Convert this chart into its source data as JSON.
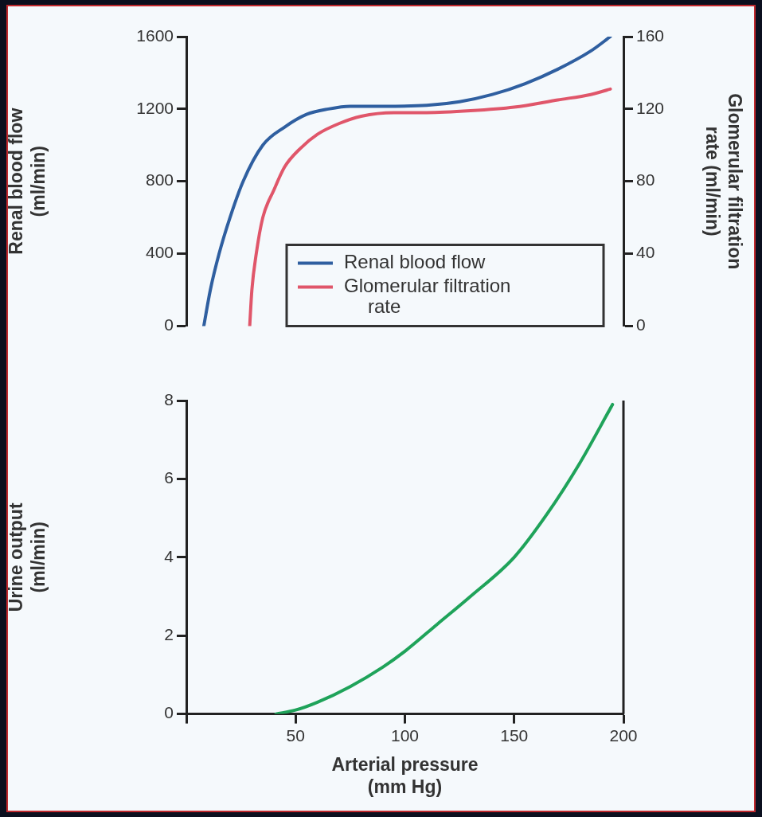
{
  "chart_data": [
    {
      "type": "line",
      "ylabel": "Renal blood flow (ml/min)",
      "y2label": "Glomerular filtration rate (ml/min)",
      "xlim": [
        0,
        200
      ],
      "ylim": [
        0,
        1600
      ],
      "yticks": [
        0,
        400,
        800,
        1200,
        1600
      ],
      "y2lim": [
        0,
        160
      ],
      "y2ticks": [
        0,
        40,
        80,
        120,
        160
      ],
      "tick_labels": "y",
      "grid": false,
      "legend": "bottom right",
      "marker": "none",
      "line_style": "solid",
      "series": [
        {
          "name": "Renal blood flow",
          "color": "#2f5fa0",
          "x": [
            8,
            11,
            15,
            20,
            26,
            35,
            45,
            55,
            65,
            75,
            90,
            110,
            125,
            140,
            155,
            170,
            185,
            194
          ],
          "values": [
            0,
            200,
            400,
            600,
            800,
            1000,
            1100,
            1170,
            1200,
            1215,
            1215,
            1220,
            1240,
            1280,
            1340,
            1420,
            1520,
            1600
          ]
        },
        {
          "name": "Glomerular filtration rate",
          "color": "#e0566a",
          "axis": "y2",
          "x": [
            29,
            30,
            32,
            35,
            40,
            45,
            52,
            60,
            70,
            80,
            95,
            110,
            130,
            150,
            170,
            185,
            194
          ],
          "values": [
            0,
            20,
            40,
            60,
            75,
            88,
            98,
            106,
            112,
            116,
            118,
            118,
            119,
            121,
            125,
            128,
            131
          ]
        }
      ]
    },
    {
      "type": "line",
      "xlabel": "Arterial pressure (mm Hg)",
      "ylabel": "Urine output (ml/min)",
      "xlim": [
        0,
        200
      ],
      "xticks": [
        {
          "value": 0,
          "label": null
        },
        50,
        100,
        150,
        200
      ],
      "ylim": [
        0,
        8
      ],
      "yticks": [
        0,
        2,
        4,
        6,
        8
      ],
      "grid": false,
      "legend": false,
      "marker": "none",
      "line_style": "solid",
      "series": [
        {
          "color": "#1fa35a",
          "x": [
            41,
            50,
            60,
            75,
            90,
            100,
            115,
            130,
            150,
            165,
            180,
            195
          ],
          "values": [
            0,
            0.1,
            0.3,
            0.7,
            1.2,
            1.6,
            2.3,
            3.0,
            4.0,
            5.1,
            6.4,
            7.9
          ]
        }
      ]
    }
  ]
}
